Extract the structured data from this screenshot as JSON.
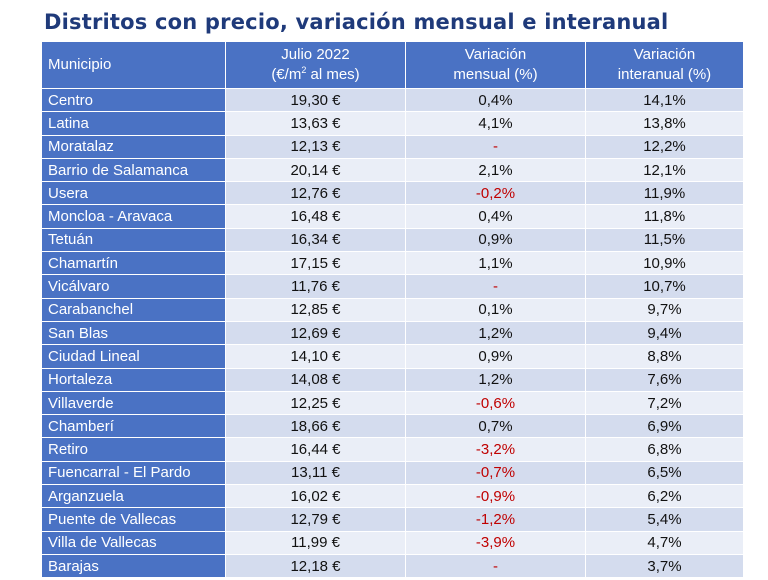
{
  "title": "Distritos con precio, variación mensual e interanual",
  "headers": {
    "municipio": "Municipio",
    "precio_line1": "Julio 2022",
    "precio_line2_pre": "(€/m",
    "precio_line2_sup": "2",
    "precio_line2_post": " al mes)",
    "mensual_line1": "Variación",
    "mensual_line2": "mensual (%)",
    "interanual_line1": "Variación",
    "interanual_line2": "interanual (%)"
  },
  "colors": {
    "header": "#4a72c4",
    "row_odd": "#d4dcee",
    "row_even": "#eaeef7",
    "negative": "#c00000",
    "title": "#1f3a7a"
  },
  "rows": [
    {
      "name": "Centro",
      "precio": "19,30 €",
      "mensual": "0,4%",
      "interanual": "14,1%"
    },
    {
      "name": "Latina",
      "precio": "13,63 €",
      "mensual": "4,1%",
      "interanual": "13,8%"
    },
    {
      "name": "Moratalaz",
      "precio": "12,13 €",
      "mensual": "-",
      "interanual": "12,2%"
    },
    {
      "name": "Barrio de Salamanca",
      "precio": "20,14 €",
      "mensual": "2,1%",
      "interanual": "12,1%"
    },
    {
      "name": "Usera",
      "precio": "12,76 €",
      "mensual": "-0,2%",
      "interanual": "11,9%"
    },
    {
      "name": "Moncloa - Aravaca",
      "precio": "16,48 €",
      "mensual": "0,4%",
      "interanual": "11,8%"
    },
    {
      "name": "Tetuán",
      "precio": "16,34 €",
      "mensual": "0,9%",
      "interanual": "11,5%"
    },
    {
      "name": "Chamartín",
      "precio": "17,15 €",
      "mensual": "1,1%",
      "interanual": "10,9%"
    },
    {
      "name": "Vicálvaro",
      "precio": "11,76 €",
      "mensual": "-",
      "interanual": "10,7%"
    },
    {
      "name": "Carabanchel",
      "precio": "12,85 €",
      "mensual": "0,1%",
      "interanual": "9,7%"
    },
    {
      "name": "San Blas",
      "precio": "12,69 €",
      "mensual": "1,2%",
      "interanual": "9,4%"
    },
    {
      "name": "Ciudad Lineal",
      "precio": "14,10 €",
      "mensual": "0,9%",
      "interanual": "8,8%"
    },
    {
      "name": "Hortaleza",
      "precio": "14,08 €",
      "mensual": "1,2%",
      "interanual": "7,6%"
    },
    {
      "name": "Villaverde",
      "precio": "12,25 €",
      "mensual": "-0,6%",
      "interanual": "7,2%"
    },
    {
      "name": "Chamberí",
      "precio": "18,66 €",
      "mensual": "0,7%",
      "interanual": "6,9%"
    },
    {
      "name": "Retiro",
      "precio": "16,44 €",
      "mensual": "-3,2%",
      "interanual": "6,8%"
    },
    {
      "name": "Fuencarral - El Pardo",
      "precio": "13,11 €",
      "mensual": "-0,7%",
      "interanual": "6,5%"
    },
    {
      "name": "Arganzuela",
      "precio": "16,02 €",
      "mensual": "-0,9%",
      "interanual": "6,2%"
    },
    {
      "name": "Puente de Vallecas",
      "precio": "12,79 €",
      "mensual": "-1,2%",
      "interanual": "5,4%"
    },
    {
      "name": "Villa de Vallecas",
      "precio": "11,99 €",
      "mensual": "-3,9%",
      "interanual": "4,7%"
    },
    {
      "name": "Barajas",
      "precio": "12,18 €",
      "mensual": "-",
      "interanual": "3,7%"
    }
  ]
}
